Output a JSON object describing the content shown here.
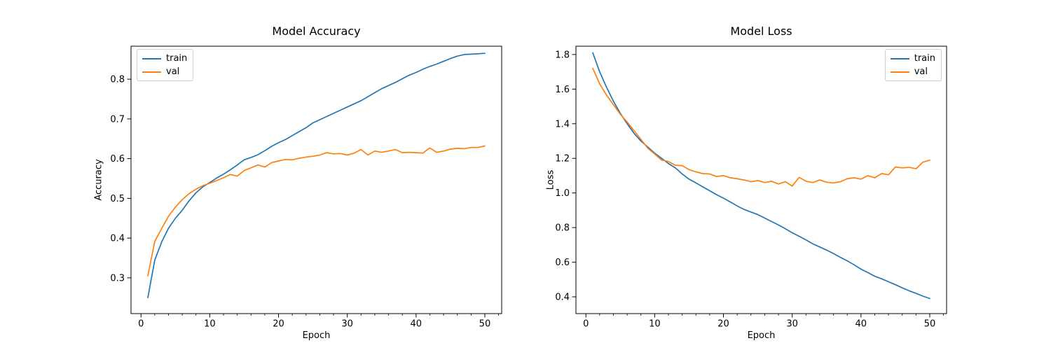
{
  "page": {
    "background": "#ffffff"
  },
  "colors": {
    "train": "#1f77b4",
    "val": "#ff7f0e",
    "axis": "#000000",
    "legend_border": "#cccccc"
  },
  "chart_data": [
    {
      "type": "line",
      "title": "Model Accuracy",
      "xlabel": "Epoch",
      "ylabel": "Accuracy",
      "grid": false,
      "legend_position": "upper left",
      "xlim": [
        -1.45,
        52.45
      ],
      "ylim": [
        0.21,
        0.883
      ],
      "xtick_labels": [
        "0",
        "10",
        "20",
        "30",
        "40",
        "50"
      ],
      "ytick_labels": [
        "0.3",
        "0.4",
        "0.5",
        "0.6",
        "0.7",
        "0.8"
      ],
      "minor_xtick_step": 2,
      "x": [
        1,
        2,
        3,
        4,
        5,
        6,
        7,
        8,
        9,
        10,
        11,
        12,
        13,
        14,
        15,
        16,
        17,
        18,
        19,
        20,
        21,
        22,
        23,
        24,
        25,
        26,
        27,
        28,
        29,
        30,
        31,
        32,
        33,
        34,
        35,
        36,
        37,
        38,
        39,
        40,
        41,
        42,
        43,
        44,
        45,
        46,
        47,
        48,
        49,
        50
      ],
      "series": [
        {
          "name": "train",
          "color": "#1f77b4",
          "values": [
            0.25,
            0.345,
            0.39,
            0.425,
            0.45,
            0.47,
            0.494,
            0.514,
            0.529,
            0.54,
            0.551,
            0.561,
            0.572,
            0.584,
            0.597,
            0.603,
            0.61,
            0.62,
            0.631,
            0.64,
            0.648,
            0.658,
            0.668,
            0.678,
            0.69,
            0.698,
            0.706,
            0.714,
            0.722,
            0.73,
            0.738,
            0.746,
            0.756,
            0.766,
            0.776,
            0.784,
            0.792,
            0.801,
            0.81,
            0.817,
            0.825,
            0.832,
            0.838,
            0.845,
            0.852,
            0.858,
            0.862,
            0.863,
            0.864,
            0.865
          ]
        },
        {
          "name": "val",
          "color": "#ff7f0e",
          "values": [
            0.305,
            0.392,
            0.424,
            0.455,
            0.478,
            0.497,
            0.512,
            0.523,
            0.532,
            0.538,
            0.545,
            0.552,
            0.56,
            0.556,
            0.57,
            0.577,
            0.584,
            0.579,
            0.59,
            0.594,
            0.598,
            0.597,
            0.601,
            0.604,
            0.606,
            0.609,
            0.615,
            0.612,
            0.613,
            0.609,
            0.614,
            0.623,
            0.609,
            0.619,
            0.616,
            0.619,
            0.623,
            0.615,
            0.616,
            0.615,
            0.614,
            0.627,
            0.616,
            0.619,
            0.624,
            0.626,
            0.625,
            0.628,
            0.628,
            0.632
          ]
        }
      ]
    },
    {
      "type": "line",
      "title": "Model Loss",
      "xlabel": "Epoch",
      "ylabel": "Loss",
      "grid": false,
      "legend_position": "upper right",
      "xlim": [
        -1.45,
        52.45
      ],
      "ylim": [
        0.303,
        1.848
      ],
      "xtick_labels": [
        "0",
        "10",
        "20",
        "30",
        "40",
        "50"
      ],
      "ytick_labels": [
        "0.4",
        "0.6",
        "0.8",
        "1.0",
        "1.2",
        "1.4",
        "1.6",
        "1.8"
      ],
      "minor_xtick_step": 2,
      "x": [
        1,
        2,
        3,
        4,
        5,
        6,
        7,
        8,
        9,
        10,
        11,
        12,
        13,
        14,
        15,
        16,
        17,
        18,
        19,
        20,
        21,
        22,
        23,
        24,
        25,
        26,
        27,
        28,
        29,
        30,
        31,
        32,
        33,
        34,
        35,
        36,
        37,
        38,
        39,
        40,
        41,
        42,
        43,
        44,
        45,
        46,
        47,
        48,
        49,
        50
      ],
      "series": [
        {
          "name": "train",
          "color": "#1f77b4",
          "values": [
            1.81,
            1.7,
            1.61,
            1.53,
            1.46,
            1.4,
            1.345,
            1.3,
            1.265,
            1.23,
            1.2,
            1.17,
            1.145,
            1.11,
            1.08,
            1.058,
            1.035,
            1.013,
            0.99,
            0.97,
            0.948,
            0.925,
            0.905,
            0.89,
            0.875,
            0.855,
            0.835,
            0.815,
            0.793,
            0.77,
            0.75,
            0.729,
            0.706,
            0.688,
            0.67,
            0.65,
            0.628,
            0.608,
            0.585,
            0.56,
            0.54,
            0.519,
            0.504,
            0.487,
            0.47,
            0.452,
            0.435,
            0.42,
            0.404,
            0.39
          ]
        },
        {
          "name": "val",
          "color": "#ff7f0e",
          "values": [
            1.72,
            1.63,
            1.565,
            1.51,
            1.455,
            1.41,
            1.36,
            1.31,
            1.258,
            1.225,
            1.19,
            1.182,
            1.16,
            1.158,
            1.135,
            1.122,
            1.112,
            1.11,
            1.095,
            1.1,
            1.088,
            1.082,
            1.075,
            1.065,
            1.072,
            1.06,
            1.068,
            1.052,
            1.065,
            1.04,
            1.09,
            1.068,
            1.06,
            1.075,
            1.062,
            1.058,
            1.065,
            1.082,
            1.088,
            1.08,
            1.1,
            1.088,
            1.112,
            1.105,
            1.15,
            1.145,
            1.148,
            1.14,
            1.178,
            1.19
          ]
        }
      ]
    }
  ]
}
